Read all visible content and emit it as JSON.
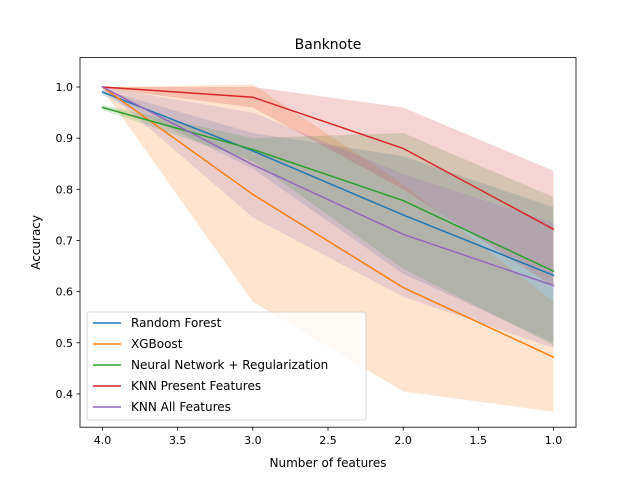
{
  "chart_data": {
    "type": "line",
    "title": "Banknote",
    "xlabel": "Number of features",
    "ylabel": "Accuracy",
    "x": [
      4.0,
      3.0,
      2.0,
      1.0
    ],
    "xlim": [
      4.15,
      0.85
    ],
    "ylim": [
      0.335,
      1.0575
    ],
    "x_inverted": true,
    "grid": false,
    "legend_position": "lower-left",
    "xticks": [
      4.0,
      3.5,
      3.0,
      2.5,
      2.0,
      1.5,
      1.0
    ],
    "xtick_labels": [
      "4.0",
      "3.5",
      "3.0",
      "2.5",
      "2.0",
      "1.5",
      "1.0"
    ],
    "yticks": [
      0.4,
      0.5,
      0.6,
      0.7,
      0.8,
      0.9,
      1.0
    ],
    "ytick_labels": [
      "0.4",
      "0.5",
      "0.6",
      "0.7",
      "0.8",
      "0.9",
      "1.0"
    ],
    "series": [
      {
        "name": "Random Forest",
        "color": "#1f77b4",
        "values": [
          0.99,
          0.875,
          0.75,
          0.632
        ],
        "lower": [
          0.985,
          0.84,
          0.635,
          0.5
        ],
        "upper": [
          0.995,
          0.91,
          0.865,
          0.765
        ]
      },
      {
        "name": "XGBoost",
        "color": "#ff7f0e",
        "values": [
          1.0,
          0.79,
          0.608,
          0.472
        ],
        "lower": [
          0.995,
          0.58,
          0.405,
          0.365
        ],
        "upper": [
          1.0,
          1.005,
          0.81,
          0.58
        ]
      },
      {
        "name": "Neural Network + Regularization",
        "color": "#2ca02c",
        "values": [
          0.96,
          0.878,
          0.778,
          0.64
        ],
        "lower": [
          0.955,
          0.855,
          0.645,
          0.495
        ],
        "upper": [
          0.965,
          0.9,
          0.91,
          0.785
        ]
      },
      {
        "name": "KNN Present Features",
        "color": "#d62728",
        "values": [
          1.0,
          0.98,
          0.88,
          0.722
        ],
        "lower": [
          0.998,
          0.96,
          0.8,
          0.61
        ],
        "upper": [
          1.0,
          1.0,
          0.96,
          0.836
        ]
      },
      {
        "name": "KNN All Features",
        "color": "#9467bd",
        "values": [
          1.0,
          0.848,
          0.712,
          0.612
        ],
        "lower": [
          0.998,
          0.745,
          0.59,
          0.49
        ],
        "upper": [
          1.0,
          0.95,
          0.83,
          0.735
        ]
      }
    ]
  }
}
